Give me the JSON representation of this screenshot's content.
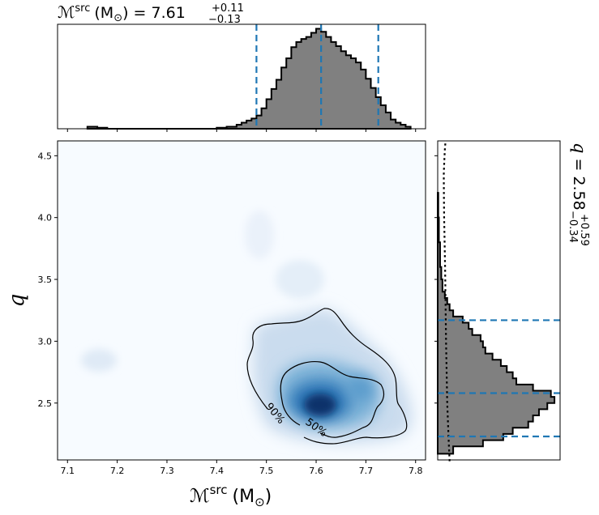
{
  "chart_data": {
    "type": "heatmap",
    "top_title": {
      "symbol": "ℳ",
      "sup": "src",
      "unit": "(M",
      "sun": "⊙",
      "close": ")",
      "eq": "= 7.61",
      "plus": "+0.11",
      "minus": "−0.13"
    },
    "right_title": {
      "symbol": "q",
      "eq": "= 2.58",
      "plus": "+0.59",
      "minus": "−0.34"
    },
    "xlabel": {
      "symbol": "ℳ",
      "sup": "src",
      "unit": "(M",
      "sun": "⊙",
      "close": ")"
    },
    "ylabel": "q",
    "xlim": [
      7.08,
      7.82
    ],
    "ylim": [
      2.04,
      4.62
    ],
    "x_ticks": [
      "7.1",
      "7.2",
      "7.3",
      "7.4",
      "7.5",
      "7.6",
      "7.7",
      "7.8"
    ],
    "y_ticks": [
      "2.5",
      "3.0",
      "3.5",
      "4.0",
      "4.5"
    ],
    "chirp_mass_quantiles": [
      7.48,
      7.61,
      7.725
    ],
    "q_quantiles": [
      2.23,
      2.58,
      3.17
    ],
    "contour_labels": [
      "90%",
      "50%"
    ],
    "colors": {
      "hist_fill": "#808080",
      "hist_edge": "#000000",
      "quantile_line": "#1f77b4",
      "cmap_low": "#f7fbff",
      "cmap_high": "#08306b"
    },
    "chirp_mass_histogram": {
      "bin_edges": [
        7.14,
        7.16,
        7.18,
        7.4,
        7.42,
        7.44,
        7.45,
        7.46,
        7.47,
        7.48,
        7.49,
        7.5,
        7.51,
        7.52,
        7.53,
        7.54,
        7.55,
        7.56,
        7.57,
        7.58,
        7.59,
        7.6,
        7.61,
        7.62,
        7.63,
        7.64,
        7.65,
        7.66,
        7.67,
        7.68,
        7.69,
        7.7,
        7.71,
        7.72,
        7.73,
        7.74,
        7.75,
        7.76,
        7.77,
        7.78,
        7.79
      ],
      "heights": [
        0.02,
        0.01,
        0,
        0.01,
        0.02,
        0.04,
        0.06,
        0.08,
        0.1,
        0.13,
        0.2,
        0.29,
        0.39,
        0.48,
        0.6,
        0.69,
        0.8,
        0.85,
        0.88,
        0.9,
        0.94,
        0.98,
        0.95,
        0.9,
        0.85,
        0.81,
        0.76,
        0.72,
        0.69,
        0.65,
        0.58,
        0.49,
        0.4,
        0.31,
        0.23,
        0.16,
        0.09,
        0.06,
        0.04,
        0.02
      ]
    },
    "q_histogram": {
      "bin_edges": [
        2.09,
        2.15,
        2.2,
        2.25,
        2.3,
        2.35,
        2.4,
        2.45,
        2.5,
        2.55,
        2.6,
        2.65,
        2.7,
        2.75,
        2.8,
        2.85,
        2.9,
        2.95,
        3.0,
        3.05,
        3.1,
        3.15,
        3.2,
        3.25,
        3.3,
        3.35,
        3.4,
        3.5,
        3.6,
        3.8,
        4.0,
        4.2
      ],
      "heights": [
        0.13,
        0.38,
        0.55,
        0.63,
        0.76,
        0.8,
        0.85,
        0.92,
        0.98,
        0.95,
        0.8,
        0.66,
        0.63,
        0.58,
        0.53,
        0.46,
        0.4,
        0.38,
        0.36,
        0.29,
        0.26,
        0.21,
        0.13,
        0.1,
        0.08,
        0.06,
        0.04,
        0.03,
        0.02,
        0.01,
        0.005
      ]
    },
    "q_prior_curve": {
      "q": [
        2.03,
        2.2,
        2.5,
        3.0,
        3.3,
        3.6,
        3.8,
        4.0,
        4.2,
        4.35,
        4.45,
        4.55,
        4.62
      ],
      "density": [
        0.1,
        0.092,
        0.08,
        0.07,
        0.066,
        0.062,
        0.058,
        0.054,
        0.052,
        0.051,
        0.055,
        0.06,
        0.066
      ]
    }
  }
}
